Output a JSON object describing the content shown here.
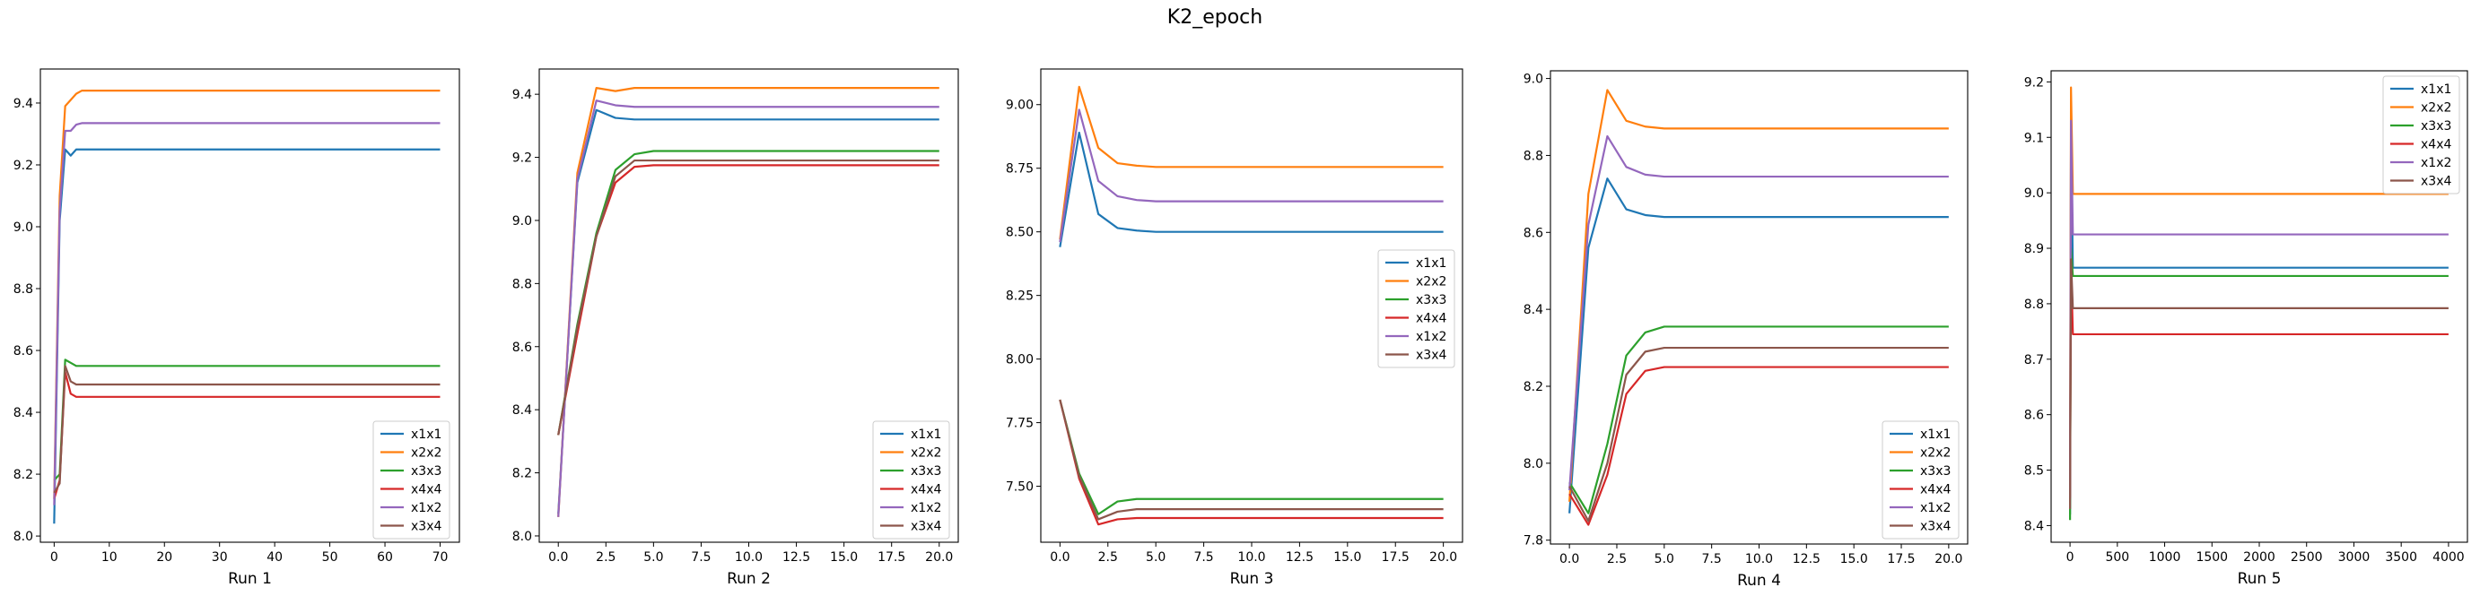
{
  "figure": {
    "title": "K2_epoch"
  },
  "chart_data": [
    {
      "type": "line",
      "xlabel": "Run 1",
      "xlim": [
        -2.5,
        73.5
      ],
      "ylim": [
        7.98,
        9.51
      ],
      "xticks": [
        0,
        10,
        20,
        30,
        40,
        50,
        60,
        70
      ],
      "xtick_labels": [
        "0",
        "10",
        "20",
        "30",
        "40",
        "50",
        "60",
        "70"
      ],
      "yticks": [
        8.0,
        8.2,
        8.4,
        8.6,
        8.8,
        9.0,
        9.2,
        9.4
      ],
      "ytick_labels": [
        "8.0",
        "8.2",
        "8.4",
        "8.6",
        "8.8",
        "9.0",
        "9.2",
        "9.4"
      ],
      "legend_position": "lower right",
      "series": [
        {
          "name": "x1x1",
          "x": [
            0,
            1,
            2,
            3,
            4,
            5,
            6,
            10,
            20,
            30,
            40,
            50,
            60,
            70
          ],
          "y": [
            8.04,
            9.02,
            9.25,
            9.23,
            9.25,
            9.25,
            9.25,
            9.25,
            9.25,
            9.25,
            9.25,
            9.25,
            9.25,
            9.25
          ]
        },
        {
          "name": "x2x2",
          "x": [
            0,
            1,
            2,
            3,
            4,
            5,
            6,
            10,
            20,
            30,
            40,
            50,
            60,
            70
          ],
          "y": [
            8.12,
            9.1,
            9.39,
            9.41,
            9.43,
            9.44,
            9.44,
            9.44,
            9.44,
            9.44,
            9.44,
            9.44,
            9.44,
            9.44
          ]
        },
        {
          "name": "x3x3",
          "x": [
            0,
            1,
            2,
            3,
            4,
            5,
            6,
            10,
            20,
            30,
            40,
            50,
            60,
            70
          ],
          "y": [
            8.18,
            8.2,
            8.57,
            8.56,
            8.55,
            8.55,
            8.55,
            8.55,
            8.55,
            8.55,
            8.55,
            8.55,
            8.55,
            8.55
          ]
        },
        {
          "name": "x4x4",
          "x": [
            0,
            1,
            2,
            3,
            4,
            5,
            6,
            10,
            20,
            30,
            40,
            50,
            60,
            70
          ],
          "y": [
            8.12,
            8.18,
            8.53,
            8.46,
            8.45,
            8.45,
            8.45,
            8.45,
            8.45,
            8.45,
            8.45,
            8.45,
            8.45,
            8.45
          ]
        },
        {
          "name": "x1x2",
          "x": [
            0,
            1,
            2,
            3,
            4,
            5,
            6,
            10,
            20,
            30,
            40,
            50,
            60,
            70
          ],
          "y": [
            8.1,
            9.05,
            9.31,
            9.31,
            9.33,
            9.335,
            9.335,
            9.335,
            9.335,
            9.335,
            9.335,
            9.335,
            9.335,
            9.335
          ]
        },
        {
          "name": "x3x4",
          "x": [
            0,
            1,
            2,
            3,
            4,
            5,
            6,
            10,
            20,
            30,
            40,
            50,
            60,
            70
          ],
          "y": [
            8.14,
            8.17,
            8.55,
            8.5,
            8.49,
            8.49,
            8.49,
            8.49,
            8.49,
            8.49,
            8.49,
            8.49,
            8.49,
            8.49
          ]
        }
      ]
    },
    {
      "type": "line",
      "xlabel": "Run 2",
      "xlim": [
        -1.0,
        21.0
      ],
      "ylim": [
        7.98,
        9.48
      ],
      "xticks": [
        0.0,
        2.5,
        5.0,
        7.5,
        10.0,
        12.5,
        15.0,
        17.5,
        20.0
      ],
      "xtick_labels": [
        "0.0",
        "2.5",
        "5.0",
        "7.5",
        "10.0",
        "12.5",
        "15.0",
        "17.5",
        "20.0"
      ],
      "yticks": [
        8.0,
        8.2,
        8.4,
        8.6,
        8.8,
        9.0,
        9.2,
        9.4
      ],
      "ytick_labels": [
        "8.0",
        "8.2",
        "8.4",
        "8.6",
        "8.8",
        "9.0",
        "9.2",
        "9.4"
      ],
      "legend_position": "lower right",
      "series": [
        {
          "name": "x1x1",
          "x": [
            0,
            1,
            2,
            3,
            4,
            5,
            6,
            8,
            10,
            12,
            14,
            16,
            18,
            20
          ],
          "y": [
            8.07,
            9.12,
            9.35,
            9.325,
            9.32,
            9.32,
            9.32,
            9.32,
            9.32,
            9.32,
            9.32,
            9.32,
            9.32,
            9.32
          ]
        },
        {
          "name": "x2x2",
          "x": [
            0,
            1,
            2,
            3,
            4,
            5,
            6,
            8,
            10,
            12,
            14,
            16,
            18,
            20
          ],
          "y": [
            8.06,
            9.15,
            9.42,
            9.41,
            9.42,
            9.42,
            9.42,
            9.42,
            9.42,
            9.42,
            9.42,
            9.42,
            9.42,
            9.42
          ]
        },
        {
          "name": "x3x3",
          "x": [
            0,
            1,
            2,
            3,
            4,
            5,
            6,
            8,
            10,
            12,
            14,
            16,
            18,
            20
          ],
          "y": [
            8.32,
            8.67,
            8.96,
            9.16,
            9.21,
            9.22,
            9.22,
            9.22,
            9.22,
            9.22,
            9.22,
            9.22,
            9.22,
            9.22
          ]
        },
        {
          "name": "x4x4",
          "x": [
            0,
            1,
            2,
            3,
            4,
            5,
            6,
            8,
            10,
            12,
            14,
            16,
            18,
            20
          ],
          "y": [
            8.32,
            8.64,
            8.95,
            9.12,
            9.17,
            9.175,
            9.175,
            9.175,
            9.175,
            9.175,
            9.175,
            9.175,
            9.175,
            9.175
          ]
        },
        {
          "name": "x1x2",
          "x": [
            0,
            1,
            2,
            3,
            4,
            5,
            6,
            8,
            10,
            12,
            14,
            16,
            18,
            20
          ],
          "y": [
            8.06,
            9.13,
            9.38,
            9.365,
            9.36,
            9.36,
            9.36,
            9.36,
            9.36,
            9.36,
            9.36,
            9.36,
            9.36,
            9.36
          ]
        },
        {
          "name": "x3x4",
          "x": [
            0,
            1,
            2,
            3,
            4,
            5,
            6,
            8,
            10,
            12,
            14,
            16,
            18,
            20
          ],
          "y": [
            8.32,
            8.66,
            8.95,
            9.14,
            9.19,
            9.19,
            9.19,
            9.19,
            9.19,
            9.19,
            9.19,
            9.19,
            9.19,
            9.19
          ]
        }
      ]
    },
    {
      "type": "line",
      "xlabel": "Run 3",
      "xlim": [
        -1.0,
        21.0
      ],
      "ylim": [
        7.28,
        9.14
      ],
      "xticks": [
        0.0,
        2.5,
        5.0,
        7.5,
        10.0,
        12.5,
        15.0,
        17.5,
        20.0
      ],
      "xtick_labels": [
        "0.0",
        "2.5",
        "5.0",
        "7.5",
        "10.0",
        "12.5",
        "15.0",
        "17.5",
        "20.0"
      ],
      "yticks": [
        7.5,
        7.75,
        8.0,
        8.25,
        8.5,
        8.75,
        9.0
      ],
      "ytick_labels": [
        "7.50",
        "7.75",
        "8.00",
        "8.25",
        "8.50",
        "8.75",
        "9.00"
      ],
      "legend_position": "center right",
      "series": [
        {
          "name": "x1x1",
          "x": [
            0,
            1,
            2,
            3,
            4,
            5,
            6,
            8,
            10,
            12,
            14,
            16,
            18,
            20
          ],
          "y": [
            8.44,
            8.89,
            8.57,
            8.515,
            8.505,
            8.5,
            8.5,
            8.5,
            8.5,
            8.5,
            8.5,
            8.5,
            8.5,
            8.5
          ]
        },
        {
          "name": "x2x2",
          "x": [
            0,
            1,
            2,
            3,
            4,
            5,
            6,
            8,
            10,
            12,
            14,
            16,
            18,
            20
          ],
          "y": [
            8.47,
            9.07,
            8.83,
            8.77,
            8.76,
            8.755,
            8.755,
            8.755,
            8.755,
            8.755,
            8.755,
            8.755,
            8.755,
            8.755
          ]
        },
        {
          "name": "x3x3",
          "x": [
            0,
            1,
            2,
            3,
            4,
            5,
            6,
            8,
            10,
            12,
            14,
            16,
            18,
            20
          ],
          "y": [
            7.84,
            7.55,
            7.39,
            7.44,
            7.45,
            7.45,
            7.45,
            7.45,
            7.45,
            7.45,
            7.45,
            7.45,
            7.45,
            7.45
          ]
        },
        {
          "name": "x4x4",
          "x": [
            0,
            1,
            2,
            3,
            4,
            5,
            6,
            8,
            10,
            12,
            14,
            16,
            18,
            20
          ],
          "y": [
            7.84,
            7.53,
            7.35,
            7.37,
            7.375,
            7.375,
            7.375,
            7.375,
            7.375,
            7.375,
            7.375,
            7.375,
            7.375,
            7.375
          ]
        },
        {
          "name": "x1x2",
          "x": [
            0,
            1,
            2,
            3,
            4,
            5,
            6,
            8,
            10,
            12,
            14,
            16,
            18,
            20
          ],
          "y": [
            8.46,
            8.98,
            8.7,
            8.64,
            8.625,
            8.62,
            8.62,
            8.62,
            8.62,
            8.62,
            8.62,
            8.62,
            8.62,
            8.62
          ]
        },
        {
          "name": "x3x4",
          "x": [
            0,
            1,
            2,
            3,
            4,
            5,
            6,
            8,
            10,
            12,
            14,
            16,
            18,
            20
          ],
          "y": [
            7.84,
            7.54,
            7.37,
            7.4,
            7.41,
            7.41,
            7.41,
            7.41,
            7.41,
            7.41,
            7.41,
            7.41,
            7.41,
            7.41
          ]
        }
      ]
    },
    {
      "type": "line",
      "xlabel": "Run 4",
      "xlim": [
        -1.0,
        21.0
      ],
      "ylim": [
        7.79,
        9.02
      ],
      "xticks": [
        0.0,
        2.5,
        5.0,
        7.5,
        10.0,
        12.5,
        15.0,
        17.5,
        20.0
      ],
      "xtick_labels": [
        "0.0",
        "2.5",
        "5.0",
        "7.5",
        "10.0",
        "12.5",
        "15.0",
        "17.5",
        "20.0"
      ],
      "yticks": [
        7.8,
        8.0,
        8.2,
        8.4,
        8.6,
        8.8,
        9.0
      ],
      "ytick_labels": [
        "7.8",
        "8.0",
        "8.2",
        "8.4",
        "8.6",
        "8.8",
        "9.0"
      ],
      "legend_position": "lower right",
      "series": [
        {
          "name": "x1x1",
          "x": [
            0,
            1,
            2,
            3,
            4,
            5,
            6,
            8,
            10,
            12,
            14,
            16,
            18,
            20
          ],
          "y": [
            7.87,
            8.56,
            8.74,
            8.66,
            8.645,
            8.64,
            8.64,
            8.64,
            8.64,
            8.64,
            8.64,
            8.64,
            8.64,
            8.64
          ]
        },
        {
          "name": "x2x2",
          "x": [
            0,
            1,
            2,
            3,
            4,
            5,
            6,
            8,
            10,
            12,
            14,
            16,
            18,
            20
          ],
          "y": [
            7.9,
            8.7,
            8.97,
            8.89,
            8.875,
            8.87,
            8.87,
            8.87,
            8.87,
            8.87,
            8.87,
            8.87,
            8.87,
            8.87
          ]
        },
        {
          "name": "x3x3",
          "x": [
            0,
            1,
            2,
            3,
            4,
            5,
            6,
            8,
            10,
            12,
            14,
            16,
            18,
            20
          ],
          "y": [
            7.95,
            7.87,
            8.05,
            8.28,
            8.34,
            8.355,
            8.355,
            8.355,
            8.355,
            8.355,
            8.355,
            8.355,
            8.355,
            8.355
          ]
        },
        {
          "name": "x4x4",
          "x": [
            0,
            1,
            2,
            3,
            4,
            5,
            6,
            8,
            10,
            12,
            14,
            16,
            18,
            20
          ],
          "y": [
            7.92,
            7.84,
            7.97,
            8.18,
            8.24,
            8.25,
            8.25,
            8.25,
            8.25,
            8.25,
            8.25,
            8.25,
            8.25,
            8.25
          ]
        },
        {
          "name": "x1x2",
          "x": [
            0,
            1,
            2,
            3,
            4,
            5,
            6,
            8,
            10,
            12,
            14,
            16,
            18,
            20
          ],
          "y": [
            7.93,
            8.62,
            8.85,
            8.77,
            8.75,
            8.745,
            8.745,
            8.745,
            8.745,
            8.745,
            8.745,
            8.745,
            8.745,
            8.745
          ]
        },
        {
          "name": "x3x4",
          "x": [
            0,
            1,
            2,
            3,
            4,
            5,
            6,
            8,
            10,
            12,
            14,
            16,
            18,
            20
          ],
          "y": [
            7.94,
            7.85,
            8.0,
            8.23,
            8.29,
            8.3,
            8.3,
            8.3,
            8.3,
            8.3,
            8.3,
            8.3,
            8.3,
            8.3
          ]
        }
      ]
    },
    {
      "type": "line",
      "xlabel": "Run 5",
      "xlim": [
        -200,
        4200
      ],
      "ylim": [
        8.37,
        9.22
      ],
      "xticks": [
        0,
        500,
        1000,
        1500,
        2000,
        2500,
        3000,
        3500,
        4000
      ],
      "xtick_labels": [
        "0",
        "500",
        "1000",
        "1500",
        "2000",
        "2500",
        "3000",
        "3500",
        "4000"
      ],
      "yticks": [
        8.4,
        8.5,
        8.6,
        8.7,
        8.8,
        8.9,
        9.0,
        9.1,
        9.2
      ],
      "ytick_labels": [
        "8.4",
        "8.5",
        "8.6",
        "8.7",
        "8.8",
        "8.9",
        "9.0",
        "9.1",
        "9.2"
      ],
      "legend_position": "upper right",
      "series": [
        {
          "name": "x1x1",
          "x": [
            0,
            10,
            30,
            4000
          ],
          "y": [
            8.42,
            9.1,
            8.865,
            8.865
          ]
        },
        {
          "name": "x2x2",
          "x": [
            0,
            10,
            30,
            4000
          ],
          "y": [
            8.5,
            9.19,
            8.998,
            8.998
          ]
        },
        {
          "name": "x3x3",
          "x": [
            0,
            10,
            30,
            4000
          ],
          "y": [
            8.41,
            8.9,
            8.85,
            8.85
          ]
        },
        {
          "name": "x4x4",
          "x": [
            0,
            10,
            30,
            4000
          ],
          "y": [
            8.45,
            8.87,
            8.745,
            8.745
          ]
        },
        {
          "name": "x1x2",
          "x": [
            0,
            10,
            30,
            4000
          ],
          "y": [
            8.45,
            9.13,
            8.925,
            8.925
          ]
        },
        {
          "name": "x3x4",
          "x": [
            0,
            10,
            30,
            4000
          ],
          "y": [
            8.43,
            8.88,
            8.792,
            8.792
          ]
        }
      ]
    }
  ],
  "colors": {
    "x1x1": "#1f77b4",
    "x2x2": "#ff7f0e",
    "x3x3": "#2ca02c",
    "x4x4": "#d62728",
    "x1x2": "#9467bd",
    "x3x4": "#8c564b"
  }
}
